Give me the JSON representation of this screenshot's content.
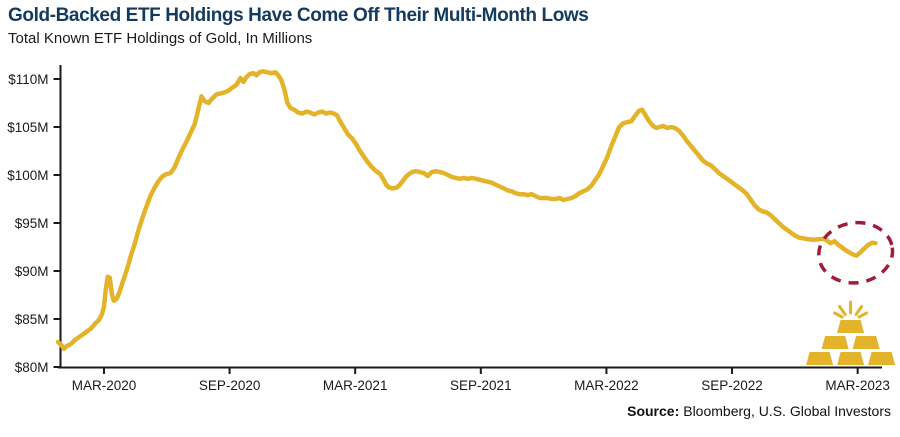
{
  "header": {
    "title": "Gold-Backed ETF Holdings Have Come Off Their Multi-Month Lows",
    "subtitle": "Total Known ETF Holdings of Gold, In Millions"
  },
  "source": {
    "label": "Source:",
    "text": "Bloomberg, U.S. Global Investors"
  },
  "colors": {
    "title_navy": "#143A5C",
    "line_gold": "#E3B32A",
    "annotation_crimson": "#A11C3B",
    "axis": "#1A1A1A"
  },
  "chart_data": {
    "type": "line",
    "title": "Gold-Backed ETF Holdings Have Come Off Their Multi-Month Lows",
    "subtitle": "Total Known ETF Holdings of Gold, In Millions",
    "grid": false,
    "legend": false,
    "x_range": [
      2020.0,
      2023.26
    ],
    "y_range": [
      80,
      110
    ],
    "y_ticks": [
      {
        "v": 110,
        "label": "$110M"
      },
      {
        "v": 105,
        "label": "$105M"
      },
      {
        "v": 100,
        "label": "$100M"
      },
      {
        "v": 95,
        "label": "$95M"
      },
      {
        "v": 90,
        "label": "$90M"
      },
      {
        "v": 85,
        "label": "$85M"
      },
      {
        "v": 80,
        "label": "$80M"
      }
    ],
    "x_ticks": [
      {
        "t": 2020.183,
        "label": "MAR-2020"
      },
      {
        "t": 2020.683,
        "label": "SEP-2020"
      },
      {
        "t": 2021.183,
        "label": "MAR-2021"
      },
      {
        "t": 2021.683,
        "label": "SEP-2021"
      },
      {
        "t": 2022.183,
        "label": "MAR-2022"
      },
      {
        "t": 2022.683,
        "label": "SEP-2022"
      },
      {
        "t": 2023.183,
        "label": "MAR-2023"
      }
    ],
    "series": [
      {
        "name": "Total Known ETF Holdings of Gold ($M)",
        "color": "#E3B32A",
        "points": [
          [
            2020.0,
            82.6
          ],
          [
            2020.012,
            82.3
          ],
          [
            2020.024,
            81.9
          ],
          [
            2020.036,
            82.2
          ],
          [
            2020.052,
            82.4
          ],
          [
            2020.067,
            82.8
          ],
          [
            2020.083,
            83.1
          ],
          [
            2020.099,
            83.4
          ],
          [
            2020.115,
            83.7
          ],
          [
            2020.131,
            84.0
          ],
          [
            2020.147,
            84.5
          ],
          [
            2020.163,
            84.9
          ],
          [
            2020.175,
            85.5
          ],
          [
            2020.183,
            86.3
          ],
          [
            2020.19,
            88.0
          ],
          [
            2020.198,
            89.4
          ],
          [
            2020.206,
            89.3
          ],
          [
            2020.214,
            87.6
          ],
          [
            2020.222,
            86.9
          ],
          [
            2020.234,
            87.1
          ],
          [
            2020.246,
            87.9
          ],
          [
            2020.258,
            88.9
          ],
          [
            2020.274,
            90.1
          ],
          [
            2020.29,
            91.6
          ],
          [
            2020.306,
            92.9
          ],
          [
            2020.321,
            94.3
          ],
          [
            2020.337,
            95.6
          ],
          [
            2020.353,
            96.8
          ],
          [
            2020.369,
            97.9
          ],
          [
            2020.385,
            98.7
          ],
          [
            2020.401,
            99.4
          ],
          [
            2020.417,
            99.9
          ],
          [
            2020.433,
            100.1
          ],
          [
            2020.448,
            100.2
          ],
          [
            2020.464,
            100.8
          ],
          [
            2020.48,
            101.8
          ],
          [
            2020.496,
            102.7
          ],
          [
            2020.512,
            103.5
          ],
          [
            2020.528,
            104.4
          ],
          [
            2020.544,
            105.3
          ],
          [
            2020.56,
            107.0
          ],
          [
            2020.571,
            108.2
          ],
          [
            2020.583,
            107.7
          ],
          [
            2020.599,
            107.5
          ],
          [
            2020.615,
            108.0
          ],
          [
            2020.631,
            108.4
          ],
          [
            2020.647,
            108.5
          ],
          [
            2020.663,
            108.6
          ],
          [
            2020.679,
            108.8
          ],
          [
            2020.694,
            109.1
          ],
          [
            2020.71,
            109.4
          ],
          [
            2020.726,
            110.1
          ],
          [
            2020.738,
            109.7
          ],
          [
            2020.75,
            110.2
          ],
          [
            2020.762,
            110.5
          ],
          [
            2020.778,
            110.6
          ],
          [
            2020.79,
            110.4
          ],
          [
            2020.802,
            110.7
          ],
          [
            2020.817,
            110.8
          ],
          [
            2020.833,
            110.7
          ],
          [
            2020.849,
            110.6
          ],
          [
            2020.865,
            110.7
          ],
          [
            2020.877,
            110.4
          ],
          [
            2020.889,
            109.9
          ],
          [
            2020.901,
            108.9
          ],
          [
            2020.913,
            107.5
          ],
          [
            2020.925,
            107.0
          ],
          [
            2020.94,
            106.8
          ],
          [
            2020.956,
            106.5
          ],
          [
            2020.972,
            106.4
          ],
          [
            2020.988,
            106.6
          ],
          [
            2021.004,
            106.5
          ],
          [
            2021.02,
            106.3
          ],
          [
            2021.036,
            106.5
          ],
          [
            2021.052,
            106.6
          ],
          [
            2021.067,
            106.4
          ],
          [
            2021.083,
            106.5
          ],
          [
            2021.099,
            106.4
          ],
          [
            2021.111,
            106.2
          ],
          [
            2021.123,
            105.6
          ],
          [
            2021.139,
            104.9
          ],
          [
            2021.155,
            104.2
          ],
          [
            2021.171,
            103.8
          ],
          [
            2021.187,
            103.2
          ],
          [
            2021.202,
            102.5
          ],
          [
            2021.218,
            101.9
          ],
          [
            2021.234,
            101.3
          ],
          [
            2021.25,
            100.8
          ],
          [
            2021.266,
            100.4
          ],
          [
            2021.282,
            100.1
          ],
          [
            2021.294,
            99.6
          ],
          [
            2021.306,
            99.0
          ],
          [
            2021.317,
            98.7
          ],
          [
            2021.333,
            98.6
          ],
          [
            2021.349,
            98.7
          ],
          [
            2021.361,
            99.0
          ],
          [
            2021.373,
            99.4
          ],
          [
            2021.385,
            99.8
          ],
          [
            2021.397,
            100.1
          ],
          [
            2021.409,
            100.3
          ],
          [
            2021.425,
            100.4
          ],
          [
            2021.44,
            100.3
          ],
          [
            2021.456,
            100.2
          ],
          [
            2021.472,
            99.9
          ],
          [
            2021.488,
            100.3
          ],
          [
            2021.504,
            100.4
          ],
          [
            2021.52,
            100.3
          ],
          [
            2021.536,
            100.2
          ],
          [
            2021.552,
            100.0
          ],
          [
            2021.567,
            99.8
          ],
          [
            2021.583,
            99.7
          ],
          [
            2021.599,
            99.6
          ],
          [
            2021.615,
            99.7
          ],
          [
            2021.631,
            99.6
          ],
          [
            2021.647,
            99.7
          ],
          [
            2021.663,
            99.6
          ],
          [
            2021.679,
            99.5
          ],
          [
            2021.694,
            99.4
          ],
          [
            2021.71,
            99.3
          ],
          [
            2021.726,
            99.2
          ],
          [
            2021.742,
            99.0
          ],
          [
            2021.758,
            98.8
          ],
          [
            2021.774,
            98.6
          ],
          [
            2021.79,
            98.4
          ],
          [
            2021.806,
            98.3
          ],
          [
            2021.821,
            98.1
          ],
          [
            2021.837,
            98.0
          ],
          [
            2021.853,
            98.0
          ],
          [
            2021.869,
            97.9
          ],
          [
            2021.885,
            98.0
          ],
          [
            2021.901,
            97.8
          ],
          [
            2021.917,
            97.6
          ],
          [
            2021.933,
            97.6
          ],
          [
            2021.948,
            97.6
          ],
          [
            2021.964,
            97.5
          ],
          [
            2021.98,
            97.5
          ],
          [
            2021.996,
            97.6
          ],
          [
            2022.012,
            97.4
          ],
          [
            2022.028,
            97.5
          ],
          [
            2022.044,
            97.6
          ],
          [
            2022.06,
            97.8
          ],
          [
            2022.075,
            98.1
          ],
          [
            2022.091,
            98.3
          ],
          [
            2022.107,
            98.5
          ],
          [
            2022.123,
            98.9
          ],
          [
            2022.139,
            99.5
          ],
          [
            2022.155,
            100.1
          ],
          [
            2022.171,
            101.0
          ],
          [
            2022.187,
            101.9
          ],
          [
            2022.202,
            103.0
          ],
          [
            2022.218,
            104.0
          ],
          [
            2022.234,
            105.0
          ],
          [
            2022.25,
            105.4
          ],
          [
            2022.266,
            105.5
          ],
          [
            2022.282,
            105.6
          ],
          [
            2022.298,
            106.2
          ],
          [
            2022.313,
            106.7
          ],
          [
            2022.325,
            106.8
          ],
          [
            2022.337,
            106.3
          ],
          [
            2022.353,
            105.6
          ],
          [
            2022.369,
            105.1
          ],
          [
            2022.381,
            104.9
          ],
          [
            2022.393,
            105.0
          ],
          [
            2022.409,
            105.1
          ],
          [
            2022.425,
            104.9
          ],
          [
            2022.44,
            105.0
          ],
          [
            2022.456,
            104.9
          ],
          [
            2022.472,
            104.6
          ],
          [
            2022.488,
            104.1
          ],
          [
            2022.504,
            103.5
          ],
          [
            2022.52,
            103.0
          ],
          [
            2022.536,
            102.5
          ],
          [
            2022.552,
            102.0
          ],
          [
            2022.567,
            101.5
          ],
          [
            2022.583,
            101.2
          ],
          [
            2022.599,
            101.0
          ],
          [
            2022.615,
            100.6
          ],
          [
            2022.631,
            100.2
          ],
          [
            2022.647,
            99.9
          ],
          [
            2022.663,
            99.6
          ],
          [
            2022.679,
            99.3
          ],
          [
            2022.694,
            99.0
          ],
          [
            2022.71,
            98.7
          ],
          [
            2022.726,
            98.4
          ],
          [
            2022.742,
            98.0
          ],
          [
            2022.758,
            97.4
          ],
          [
            2022.774,
            96.8
          ],
          [
            2022.79,
            96.4
          ],
          [
            2022.806,
            96.2
          ],
          [
            2022.821,
            96.1
          ],
          [
            2022.837,
            95.8
          ],
          [
            2022.853,
            95.4
          ],
          [
            2022.869,
            95.0
          ],
          [
            2022.885,
            94.6
          ],
          [
            2022.901,
            94.3
          ],
          [
            2022.917,
            94.0
          ],
          [
            2022.933,
            93.7
          ],
          [
            2022.948,
            93.5
          ],
          [
            2022.968,
            93.4
          ],
          [
            2022.988,
            93.3
          ],
          [
            2023.008,
            93.25
          ],
          [
            2023.028,
            93.3
          ],
          [
            2023.044,
            93.35
          ],
          [
            2023.06,
            93.2
          ],
          [
            2023.075,
            92.9
          ],
          [
            2023.091,
            93.1
          ],
          [
            2023.107,
            92.7
          ],
          [
            2023.123,
            92.4
          ],
          [
            2023.139,
            92.1
          ],
          [
            2023.155,
            91.85
          ],
          [
            2023.171,
            91.65
          ],
          [
            2023.179,
            91.6
          ],
          [
            2023.194,
            91.95
          ],
          [
            2023.21,
            92.35
          ],
          [
            2023.226,
            92.75
          ],
          [
            2023.242,
            92.95
          ],
          [
            2023.254,
            92.9
          ]
        ]
      }
    ],
    "annotations": {
      "ellipse_highlight": {
        "t": 2023.175,
        "value": 91.9,
        "color": "#A11C3B"
      },
      "gold_bars_icon": {
        "t": 2023.155,
        "color": "#E3B32A"
      }
    }
  }
}
